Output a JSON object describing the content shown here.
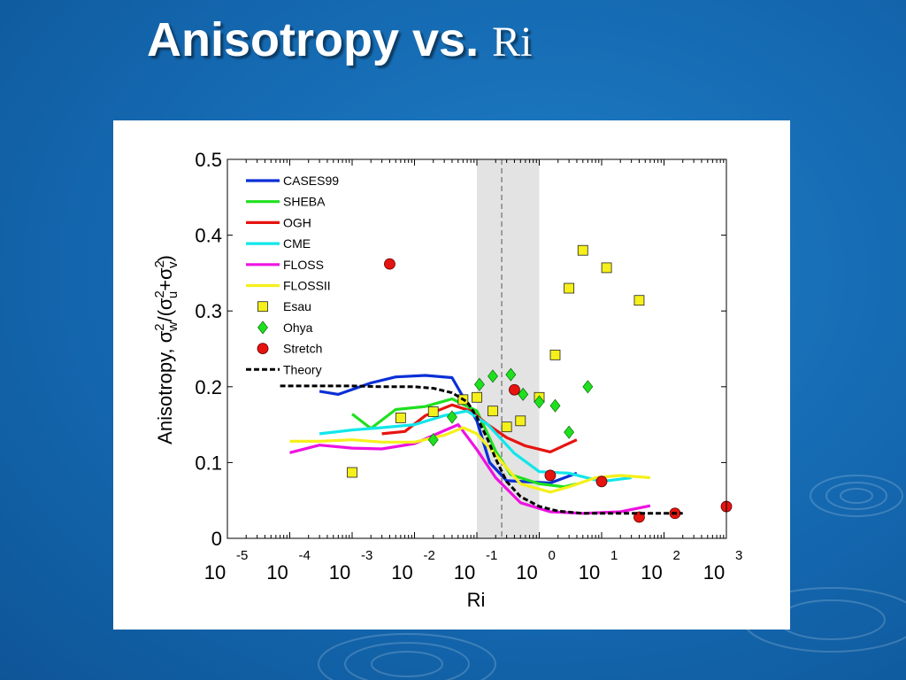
{
  "slide": {
    "title_bold": "Anisotropy vs.",
    "title_serif": "Ri"
  },
  "colors": {
    "background": "#1468b0",
    "title": "#ffffff",
    "shade": "#e3e3e3"
  },
  "chart_data": {
    "type": "line",
    "title": "",
    "xlabel": "Ri",
    "ylabel_parts": {
      "main": "Anisotropy, σ",
      "w": "w",
      "sq": "2",
      "mid": "/(σ",
      "u": "u",
      "plus": "+σ",
      "v": "v",
      "close": ")"
    },
    "xscale": "log",
    "xlim": [
      1e-05,
      1000
    ],
    "ylim": [
      0,
      0.5
    ],
    "yticks": [
      0,
      0.1,
      0.2,
      0.3,
      0.4,
      0.5
    ],
    "ytick_labels": [
      "0",
      "0.1",
      "0.2",
      "0.3",
      "0.4",
      "0.5"
    ],
    "xtick_exponents": [
      -5,
      -4,
      -3,
      -2,
      -1,
      0,
      1,
      2,
      3
    ],
    "xtick_base": "10",
    "shaded_region": {
      "x": [
        0.1,
        1.0
      ],
      "color": "#e3e3e3"
    },
    "vertical_line": {
      "x": 0.25,
      "style": "dashed"
    },
    "grid": false,
    "legend_position": "top-left",
    "series": [
      {
        "name": "CASES99",
        "kind": "line",
        "color": "#0a2fd6",
        "x": [
          0.0003,
          0.0006,
          0.002,
          0.005,
          0.015,
          0.04,
          0.1,
          0.16,
          0.3,
          1.5,
          4
        ],
        "y": [
          0.194,
          0.19,
          0.205,
          0.213,
          0.215,
          0.212,
          0.155,
          0.1,
          0.076,
          0.073,
          0.086
        ]
      },
      {
        "name": "SHEBA",
        "kind": "line",
        "color": "#1fe01f",
        "x": [
          0.001,
          0.002,
          0.005,
          0.015,
          0.04,
          0.1,
          0.2,
          0.35,
          1,
          2.5,
          4
        ],
        "y": [
          0.164,
          0.145,
          0.17,
          0.174,
          0.184,
          0.168,
          0.115,
          0.084,
          0.072,
          0.068,
          0.072
        ]
      },
      {
        "name": "OGH",
        "kind": "line",
        "color": "#e6140f",
        "x": [
          0.003,
          0.007,
          0.015,
          0.04,
          0.08,
          0.15,
          0.3,
          0.6,
          1.5,
          4
        ],
        "y": [
          0.138,
          0.141,
          0.162,
          0.176,
          0.168,
          0.15,
          0.133,
          0.122,
          0.114,
          0.13
        ]
      },
      {
        "name": "CME",
        "kind": "line",
        "color": "#12e6ea",
        "x": [
          0.0003,
          0.001,
          0.003,
          0.01,
          0.03,
          0.07,
          0.15,
          0.4,
          1,
          3,
          10,
          30
        ],
        "y": [
          0.138,
          0.143,
          0.146,
          0.15,
          0.162,
          0.168,
          0.15,
          0.112,
          0.088,
          0.086,
          0.075,
          0.08
        ]
      },
      {
        "name": "FLOSS",
        "kind": "line",
        "color": "#ee12e2",
        "x": [
          0.0001,
          0.0003,
          0.001,
          0.003,
          0.01,
          0.05,
          0.1,
          0.2,
          0.5,
          1.5,
          5,
          20,
          60
        ],
        "y": [
          0.113,
          0.123,
          0.119,
          0.118,
          0.125,
          0.15,
          0.117,
          0.08,
          0.047,
          0.035,
          0.033,
          0.035,
          0.043
        ]
      },
      {
        "name": "FLOSSII",
        "kind": "line",
        "color": "#f5f01a",
        "x": [
          0.0001,
          0.0003,
          0.001,
          0.003,
          0.01,
          0.03,
          0.06,
          0.1,
          0.2,
          0.5,
          1.5,
          3,
          8,
          20,
          60
        ],
        "y": [
          0.128,
          0.128,
          0.13,
          0.127,
          0.127,
          0.136,
          0.146,
          0.138,
          0.11,
          0.072,
          0.061,
          0.068,
          0.08,
          0.083,
          0.08
        ]
      },
      {
        "name": "Esau",
        "kind": "marker",
        "marker": "square",
        "color": "#f5f01a",
        "x": [
          0.001,
          0.006,
          0.02,
          0.06,
          0.1,
          0.18,
          0.3,
          0.5,
          1.0,
          1.8,
          3,
          5,
          12,
          40
        ],
        "y": [
          0.087,
          0.159,
          0.167,
          0.183,
          0.186,
          0.168,
          0.147,
          0.155,
          0.186,
          0.242,
          0.33,
          0.38,
          0.357,
          0.314
        ]
      },
      {
        "name": "Ohya",
        "kind": "marker",
        "marker": "diamond",
        "color": "#1fe01f",
        "x": [
          0.02,
          0.04,
          0.11,
          0.18,
          0.35,
          0.55,
          1.0,
          1.8,
          3,
          6
        ],
        "y": [
          0.13,
          0.16,
          0.203,
          0.214,
          0.216,
          0.19,
          0.18,
          0.175,
          0.14,
          0.2
        ]
      },
      {
        "name": "Stretch",
        "kind": "marker",
        "marker": "circle",
        "color": "#e6140f",
        "x": [
          0.004,
          0.4,
          1.5,
          10,
          40,
          150,
          1000
        ],
        "y": [
          0.362,
          0.196,
          0.083,
          0.075,
          0.028,
          0.033,
          0.042
        ]
      },
      {
        "name": "Theory",
        "kind": "line",
        "style": "dashed",
        "color": "#000000",
        "x": [
          7e-05,
          0.001,
          0.003,
          0.01,
          0.02,
          0.04,
          0.07,
          0.1,
          0.15,
          0.2,
          0.3,
          0.5,
          1,
          2,
          5,
          20,
          100,
          200
        ],
        "y": [
          0.201,
          0.201,
          0.2,
          0.2,
          0.198,
          0.192,
          0.18,
          0.16,
          0.13,
          0.105,
          0.075,
          0.055,
          0.042,
          0.036,
          0.033,
          0.033,
          0.033,
          0.033
        ]
      }
    ]
  }
}
